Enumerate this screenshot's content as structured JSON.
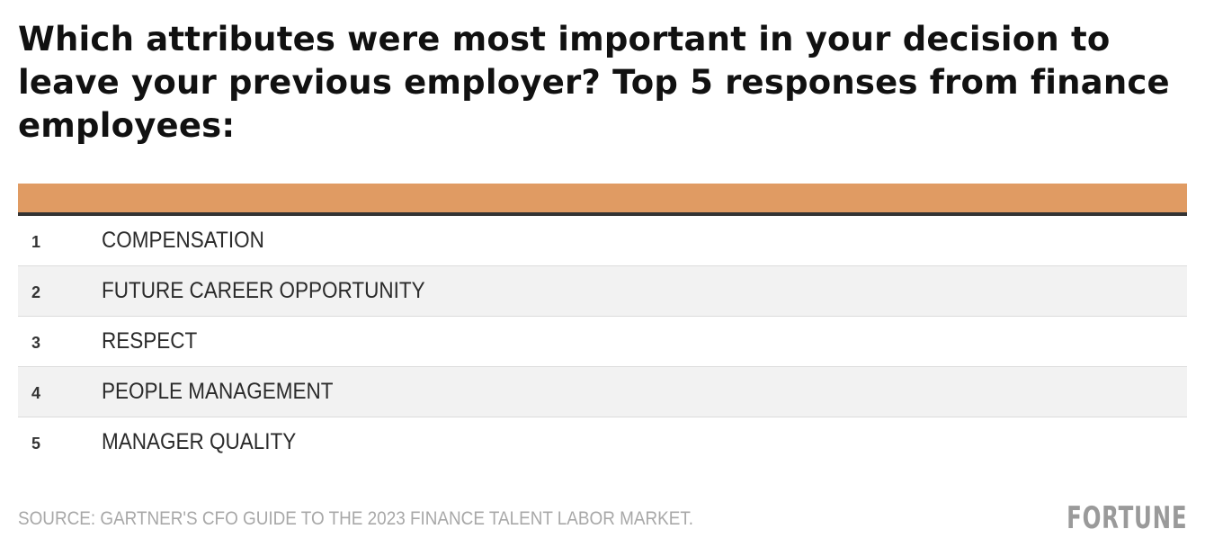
{
  "title": "Which attributes were most important in your decision to leave your previous employer? Top 5 responses from finance employees:",
  "colors": {
    "header_bar": "#e09b63",
    "header_rule": "#333333",
    "row_shade": "#f2f2f2",
    "source_text": "#a8a8a8",
    "logo_text": "#9a9a9a"
  },
  "chart_data": {
    "type": "table",
    "title": "Which attributes were most important in your decision to leave your previous employer? Top 5 responses from finance employees:",
    "columns": [
      "",
      ""
    ],
    "rows": [
      {
        "rank": "1",
        "attribute": "COMPENSATION"
      },
      {
        "rank": "2",
        "attribute": "FUTURE CAREER OPPORTUNITY"
      },
      {
        "rank": "3",
        "attribute": "RESPECT"
      },
      {
        "rank": "4",
        "attribute": "PEOPLE MANAGEMENT"
      },
      {
        "rank": "5",
        "attribute": "MANAGER QUALITY"
      }
    ]
  },
  "footer": {
    "source": "SOURCE: GARTNER'S CFO GUIDE TO THE 2023 FINANCE TALENT LABOR MARKET.",
    "logo": "FORTUNE"
  }
}
